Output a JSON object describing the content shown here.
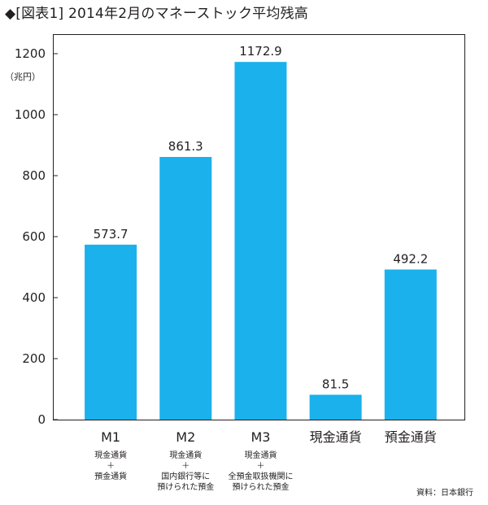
{
  "title": "◆[図表1] 2014年2月のマネーストック平均残高",
  "source": "資料：日本銀行",
  "chart_data": {
    "type": "bar",
    "title": "◆[図表1] 2014年2月のマネーストック平均残高",
    "ylabel": "（兆円）",
    "ylim": [
      0,
      1200
    ],
    "yticks": [
      0,
      200,
      400,
      600,
      800,
      1000,
      1200
    ],
    "categories": [
      "M1",
      "M2",
      "M3",
      "現金通貨",
      "預金通貨"
    ],
    "values": [
      573.7,
      861.3,
      1172.9,
      81.5,
      492.2
    ],
    "value_labels": [
      "573.7",
      "861.3",
      "1172.9",
      "81.5",
      "492.2"
    ],
    "descriptions": [
      [
        "現金通貨",
        "＋",
        "預金通貨"
      ],
      [
        "現金通貨",
        "＋",
        "国内銀行等に",
        "預けられた預金"
      ],
      [
        "現金通貨",
        "＋",
        "全預金取扱機関に",
        "預けられた預金"
      ],
      [],
      []
    ],
    "bar_color": "#1ab1ec",
    "grid": false,
    "legend": "none"
  }
}
